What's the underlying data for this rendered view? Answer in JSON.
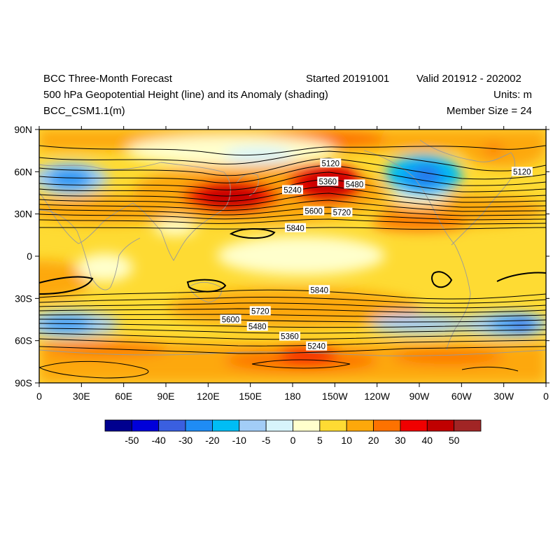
{
  "header": {
    "title": "BCC Three-Month Forecast",
    "started": "Started 20191001",
    "valid": "Valid 201912 - 202002",
    "subtitle": "500 hPa Geopotential Height (line) and its Anomaly (shading)",
    "units": "Units: m",
    "model": "BCC_CSM1.1(m)",
    "member_size": "Member Size = 24"
  },
  "chart_data": {
    "type": "heatmap",
    "x_ticks": [
      "0",
      "30E",
      "60E",
      "90E",
      "120E",
      "150E",
      "180",
      "150W",
      "120W",
      "90W",
      "60W",
      "30W",
      "0"
    ],
    "y_ticks": [
      "90N",
      "60N",
      "30N",
      "0",
      "30S",
      "60S",
      "90S"
    ],
    "xlim": [
      0,
      360
    ],
    "ylim": [
      -90,
      90
    ],
    "contour_labels": [
      {
        "text": "5120",
        "lon": 207,
        "lat": 66
      },
      {
        "text": "5120",
        "lon": 343,
        "lat": 60
      },
      {
        "text": "5240",
        "lon": 180,
        "lat": 47
      },
      {
        "text": "5360",
        "lon": 205,
        "lat": 53
      },
      {
        "text": "5480",
        "lon": 224,
        "lat": 51
      },
      {
        "text": "5600",
        "lon": 195,
        "lat": 32
      },
      {
        "text": "5720",
        "lon": 215,
        "lat": 31
      },
      {
        "text": "5840",
        "lon": 182,
        "lat": 20
      },
      {
        "text": "5840",
        "lon": 199,
        "lat": -24
      },
      {
        "text": "5720",
        "lon": 157,
        "lat": -39
      },
      {
        "text": "5600",
        "lon": 136,
        "lat": -45
      },
      {
        "text": "5480",
        "lon": 155,
        "lat": -50
      },
      {
        "text": "5360",
        "lon": 178,
        "lat": -57
      },
      {
        "text": "5240",
        "lon": 197,
        "lat": -64
      }
    ],
    "colorbar": {
      "labels": [
        "-50",
        "-40",
        "-30",
        "-20",
        "-10",
        "-5",
        "0",
        "5",
        "10",
        "20",
        "30",
        "40",
        "50"
      ],
      "colors": [
        "#00008f",
        "#0000d9",
        "#3a5fe0",
        "#1f8cf5",
        "#00bdf5",
        "#a2cdf7",
        "#d7f4fb",
        "#ffffcc",
        "#fedb33",
        "#fda80b",
        "#fd7200",
        "#f00000",
        "#c00000",
        "#a12525"
      ]
    }
  }
}
